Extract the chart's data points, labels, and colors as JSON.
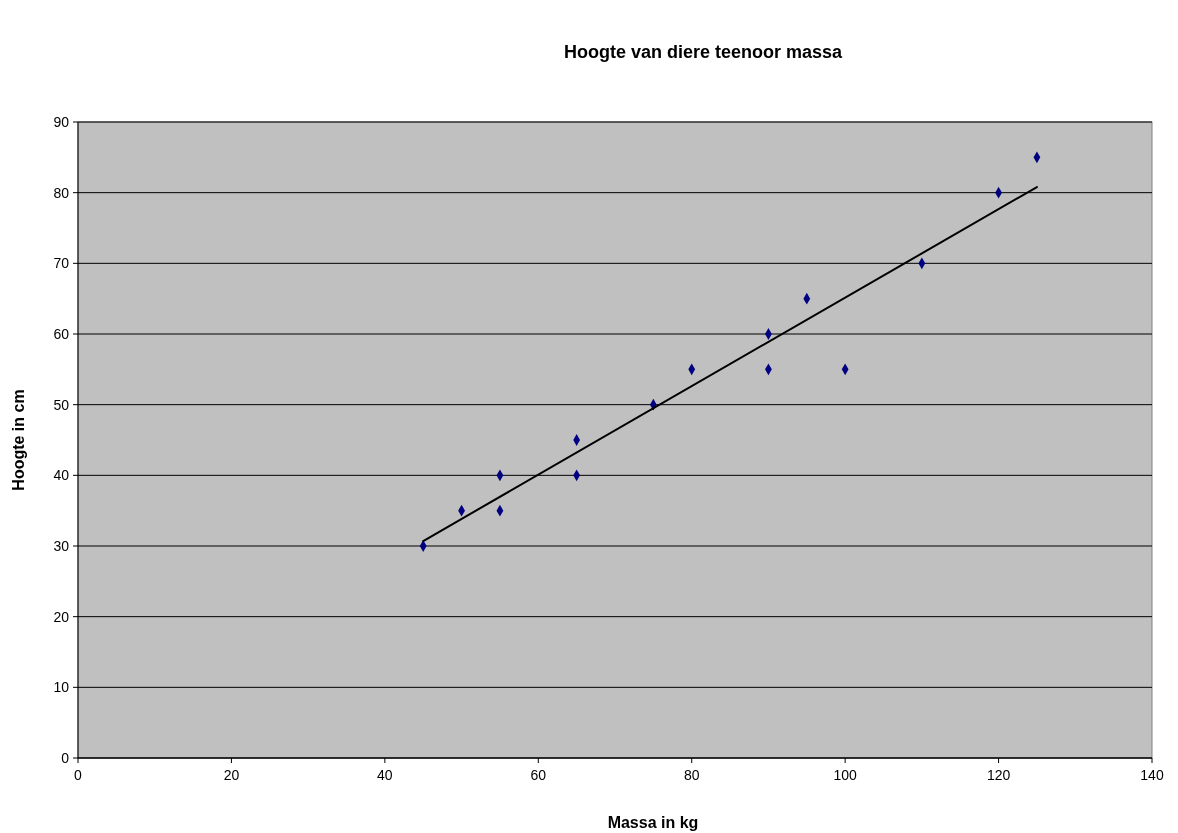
{
  "chart_data": {
    "type": "scatter",
    "title": "Hoogte van diere teenoor massa",
    "xlabel": "Massa in kg",
    "ylabel": "Hoogte in cm",
    "xlim": [
      0,
      140
    ],
    "xticks": [
      0,
      20,
      40,
      60,
      80,
      100,
      120,
      140
    ],
    "ylim": [
      0,
      90
    ],
    "yticks": [
      0,
      10,
      20,
      30,
      40,
      50,
      60,
      70,
      80,
      90
    ],
    "grid": "y",
    "marker": "diamond",
    "series": [
      {
        "color": "#000080",
        "x": [
          45,
          50,
          55,
          55,
          65,
          65,
          75,
          80,
          90,
          90,
          95,
          100,
          110,
          120,
          125
        ],
        "values": [
          30,
          35,
          40,
          35,
          45,
          40,
          50,
          55,
          60,
          55,
          65,
          55,
          70,
          80,
          85
        ]
      },
      {
        "type": "line",
        "color": "#000000",
        "marker": "none",
        "line_style": "solid",
        "x": [
          45,
          125
        ],
        "values": [
          30.7,
          80.8
        ]
      }
    ]
  }
}
